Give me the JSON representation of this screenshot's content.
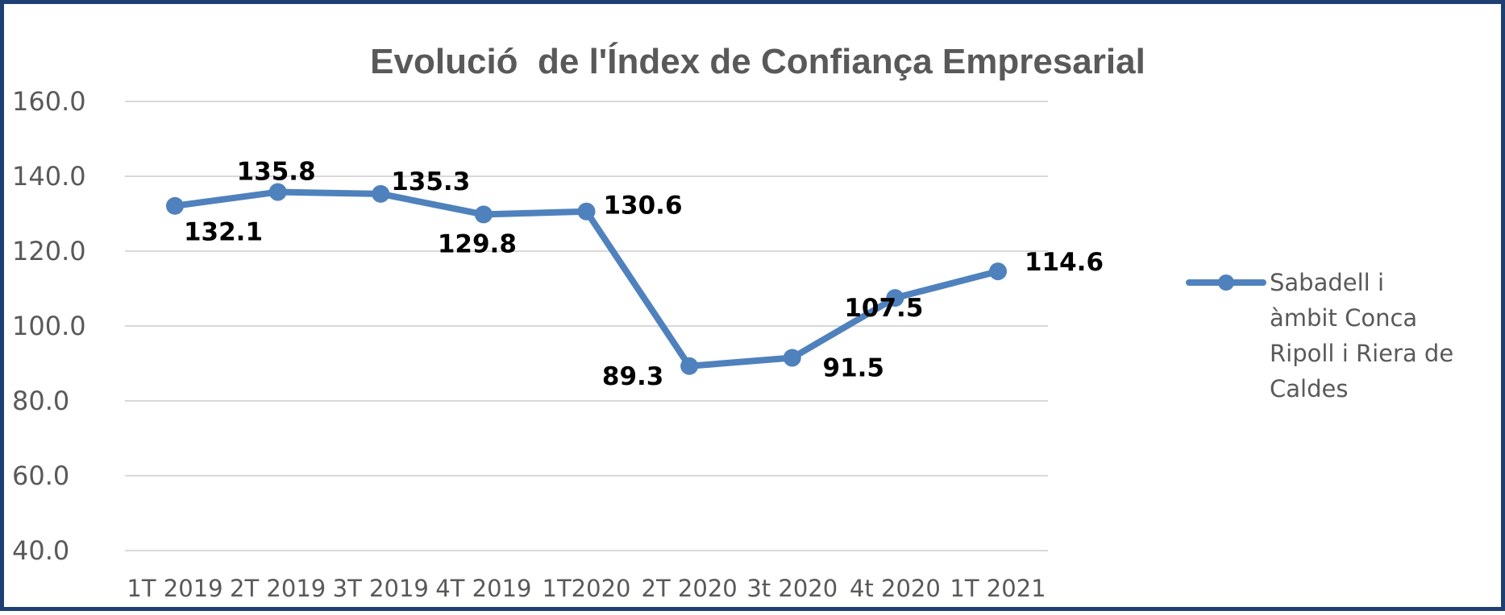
{
  "chart_data": {
    "type": "line",
    "title": "Evolució  de l'Índex de Confiança Empresarial",
    "xlabel": "",
    "ylabel": "",
    "categories": [
      "1T 2019",
      "2T 2019",
      "3T 2019",
      "4T 2019",
      "1T2020",
      "2T 2020",
      "3t 2020",
      "4t 2020",
      "1T 2021"
    ],
    "ylim": [
      40,
      160
    ],
    "yticks": [
      "40.0",
      "60.0",
      "80.0",
      "100.0",
      "120.0",
      "140.0",
      "160.0"
    ],
    "grid": true,
    "legend_position": "right",
    "series": [
      {
        "name": "Sabadell i àmbit Conca Ripoll i Riera de Caldes",
        "legend_lines": [
          "Sabadell i",
          "àmbit Conca",
          "Ripoll i Riera de",
          "Caldes"
        ],
        "color": "#4f81bd",
        "values": [
          132.1,
          135.8,
          135.3,
          129.8,
          130.6,
          89.3,
          91.5,
          107.5,
          114.6
        ],
        "labels": [
          "132.1",
          "135.8",
          "135.3",
          "129.8",
          "130.6",
          "89.3",
          "91.5",
          "107.5",
          "114.6"
        ]
      }
    ]
  }
}
